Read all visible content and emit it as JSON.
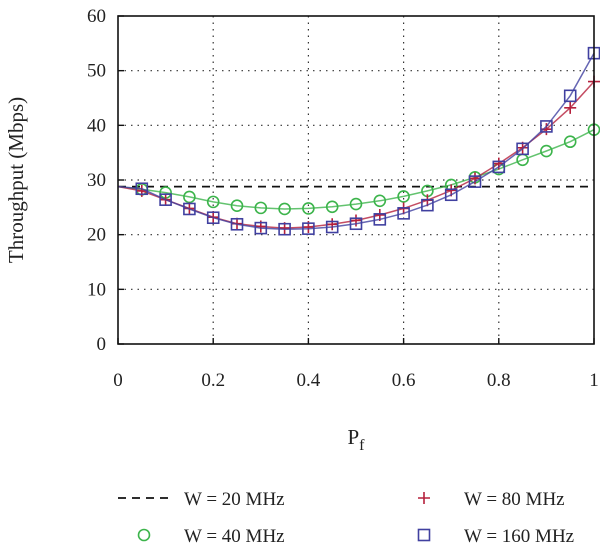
{
  "chart_data": {
    "type": "line",
    "title": "",
    "xlabel": "P",
    "xlabel_sub": "f",
    "ylabel": "Throughput (Mbps)",
    "xlim": [
      0,
      1
    ],
    "ylim": [
      0,
      60
    ],
    "x_ticks": [
      0,
      0.2,
      0.4,
      0.6,
      0.8,
      1
    ],
    "x_tick_labels": [
      "0",
      "0.2",
      "0.4",
      "0.6",
      "0.8",
      "1"
    ],
    "y_ticks": [
      0,
      10,
      20,
      30,
      40,
      50,
      60
    ],
    "y_tick_labels": [
      "0",
      "10",
      "20",
      "30",
      "40",
      "50",
      "60"
    ],
    "grid": "dotted",
    "legend_position": "bottom",
    "series": [
      {
        "name": "W = 20 MHz",
        "color": "#111111",
        "style": "dashed",
        "marker": "none",
        "x": [
          0,
          1
        ],
        "y": [
          28.8,
          28.8
        ]
      },
      {
        "name": "W = 40 MHz",
        "color": "#3cb44b",
        "style": "solid",
        "marker": "circle",
        "x": [
          0.05,
          0.1,
          0.15,
          0.2,
          0.25,
          0.3,
          0.35,
          0.4,
          0.45,
          0.5,
          0.55,
          0.6,
          0.65,
          0.7,
          0.75,
          0.8,
          0.85,
          0.9,
          0.95,
          1.0
        ],
        "y": [
          28.3,
          27.7,
          26.9,
          26.0,
          25.3,
          24.9,
          24.7,
          24.8,
          25.1,
          25.6,
          26.2,
          27.0,
          28.0,
          29.1,
          30.5,
          32.0,
          33.7,
          35.3,
          37.0,
          39.2
        ]
      },
      {
        "name": "W = 80 MHz",
        "color": "#b5203c",
        "style": "solid",
        "marker": "plus",
        "x": [
          0.05,
          0.1,
          0.15,
          0.2,
          0.25,
          0.3,
          0.35,
          0.4,
          0.45,
          0.5,
          0.55,
          0.6,
          0.65,
          0.7,
          0.75,
          0.8,
          0.85,
          0.9,
          0.95,
          1.0
        ],
        "y": [
          28.0,
          26.4,
          24.8,
          23.2,
          22.0,
          21.5,
          21.2,
          21.4,
          21.9,
          22.6,
          23.6,
          24.8,
          26.3,
          28.1,
          30.3,
          33.0,
          35.9,
          39.3,
          43.2,
          48.0
        ]
      },
      {
        "name": "W = 160 MHz",
        "color": "#4040a0",
        "style": "solid",
        "marker": "square",
        "x": [
          0.05,
          0.1,
          0.15,
          0.2,
          0.25,
          0.3,
          0.35,
          0.4,
          0.45,
          0.5,
          0.55,
          0.6,
          0.65,
          0.7,
          0.75,
          0.8,
          0.85,
          0.9,
          0.95,
          1.0
        ],
        "y": [
          28.4,
          26.4,
          24.7,
          23.1,
          21.9,
          21.2,
          21.0,
          21.1,
          21.4,
          22.0,
          22.8,
          23.9,
          25.4,
          27.3,
          29.7,
          32.4,
          35.7,
          39.8,
          45.4,
          53.2
        ]
      }
    ]
  }
}
